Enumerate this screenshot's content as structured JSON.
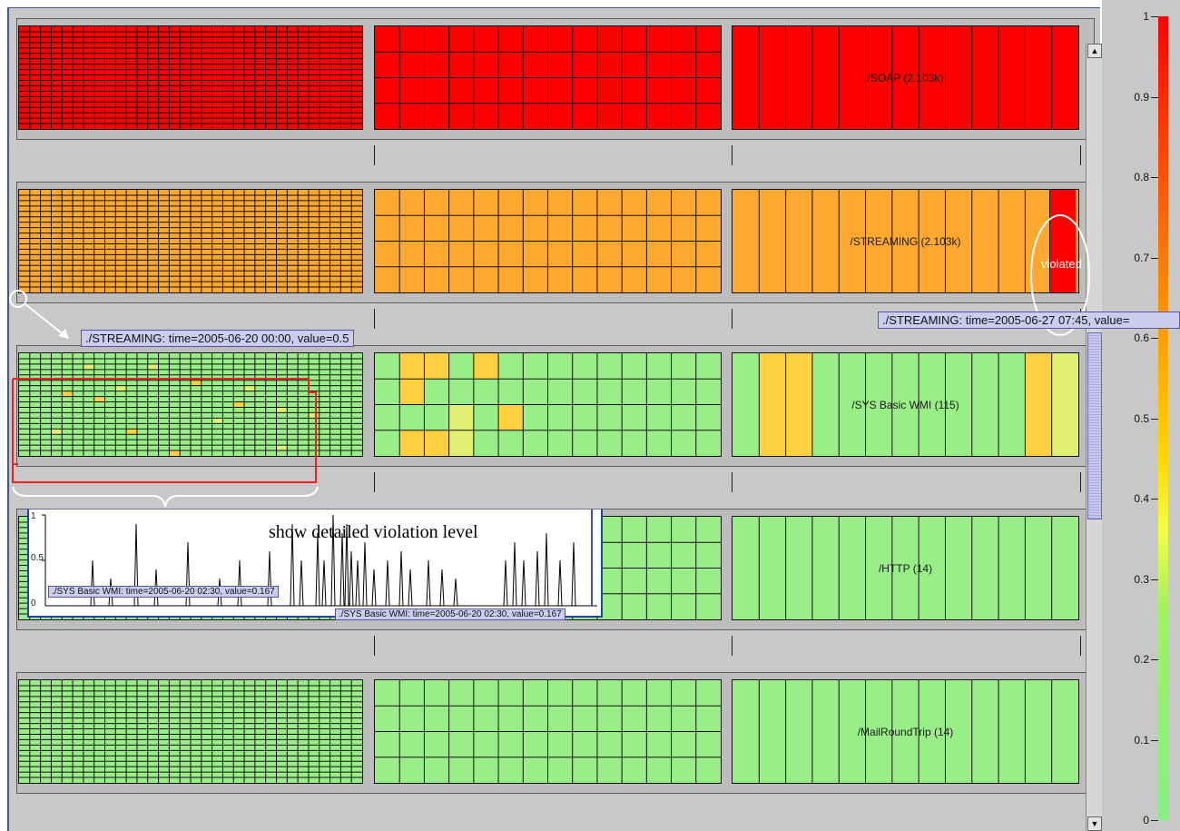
{
  "colors": {
    "red": "#ff0000",
    "orange": "#ffa830",
    "green": "#99ee88",
    "yellow": "#ffd040",
    "light_yellow": "#e0f070"
  },
  "rows": [
    {
      "label": "/SOAP (2.103k)",
      "cells": [
        {
          "color": "#ff0000",
          "cols": 32,
          "rows": 19
        },
        {
          "color": "#ff0000",
          "cols": 14,
          "rows": 4
        },
        {
          "color": "#ff0000",
          "cols": 13,
          "rows": 1
        }
      ]
    },
    {
      "label": "/STREAMING (2.103k)",
      "cells": [
        {
          "color": "#ffa830",
          "cols": 32,
          "rows": 19
        },
        {
          "color": "#ffa830",
          "cols": 14,
          "rows": 4
        },
        {
          "color": "#ffa830",
          "cols": 13,
          "rows": 1
        }
      ]
    },
    {
      "label": "/SYS Basic WMI (115)",
      "cells": [
        {
          "color": "#99ee88",
          "cols": 32,
          "rows": 19
        },
        {
          "color": "#99ee88",
          "cols": 14,
          "rows": 4
        },
        {
          "color": "#99ee88",
          "cols": 13,
          "rows": 1
        }
      ]
    },
    {
      "label": "/HTTP (14)",
      "cells": [
        {
          "color": "#99ee88",
          "cols": 32,
          "rows": 19
        },
        {
          "color": "#99ee88",
          "cols": 14,
          "rows": 4
        },
        {
          "color": "#99ee88",
          "cols": 13,
          "rows": 1
        }
      ]
    },
    {
      "label": "/MailRoundTrip (14)",
      "cells": [
        {
          "color": "#99ee88",
          "cols": 32,
          "rows": 19
        },
        {
          "color": "#99ee88",
          "cols": 14,
          "rows": 4
        },
        {
          "color": "#99ee88",
          "cols": 13,
          "rows": 1
        }
      ]
    }
  ],
  "legend": {
    "ticks": [
      "1",
      "0.9",
      "0.8",
      "0.7",
      "0.6",
      "0.5",
      "0.4",
      "0.3",
      "0.2",
      "0.1",
      "0"
    ]
  },
  "tooltips": {
    "streaming_point": "./STREAMING: time=2005-06-20 00:00, value=0.5",
    "streaming_violation": "./STREAMING: time=2005-06-27 07:45, value=",
    "wmi_inner": "./SYS Basic WMI: time=2005-06-20 02:30, value=0.167",
    "wmi_outer": "./SYS Basic WMI: time=2005-06-20 02:30, value=0.167"
  },
  "annotations": {
    "detail_title": "show detailed violation level",
    "violated": "violated"
  },
  "detail_chart": {
    "y_ticks": [
      "1",
      "0.5",
      "0"
    ]
  }
}
